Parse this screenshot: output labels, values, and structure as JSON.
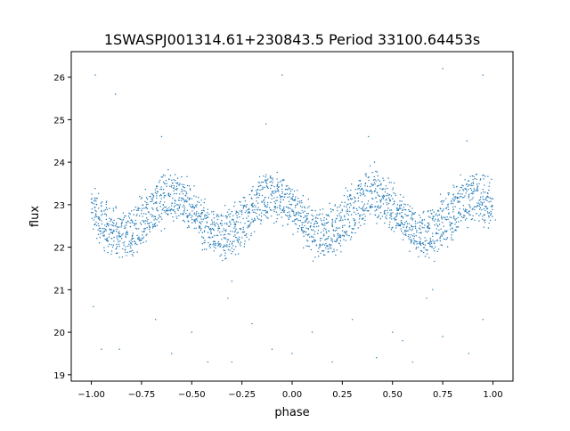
{
  "chart_data": {
    "type": "scatter",
    "title": "1SWASPJ001314.61+230843.5 Period 33100.64453s",
    "xlabel": "phase",
    "ylabel": "flux",
    "xlim": [
      -1.1,
      1.1
    ],
    "ylim": [
      18.85,
      26.6
    ],
    "xticks": [
      -1.0,
      -0.75,
      -0.5,
      -0.25,
      0.0,
      0.25,
      0.5,
      0.75,
      1.0
    ],
    "xtick_labels": [
      "−1.00",
      "−0.75",
      "−0.50",
      "−0.25",
      "0.00",
      "0.25",
      "0.50",
      "0.75",
      "1.00"
    ],
    "yticks": [
      19,
      20,
      21,
      22,
      23,
      24,
      25,
      26
    ],
    "ytick_labels": [
      "19",
      "20",
      "21",
      "22",
      "23",
      "24",
      "25",
      "26"
    ],
    "grid": false,
    "marker_color": "#1f77b4",
    "band_x_start": -1.0,
    "band_x_step": 0.025,
    "band_upper": [
      23.14,
      23.0,
      22.86,
      22.74,
      22.64,
      22.57,
      22.55,
      22.57,
      22.64,
      22.74,
      22.86,
      23.0,
      23.14,
      23.26,
      23.36,
      23.43,
      23.45,
      23.43,
      23.36,
      23.26,
      23.14,
      23.0,
      22.86,
      22.74,
      22.64,
      22.57,
      22.55,
      22.57,
      22.64,
      22.74,
      22.86,
      23.0,
      23.14,
      23.26,
      23.36,
      23.43,
      23.45,
      23.43,
      23.36,
      23.26,
      23.14,
      23.0,
      22.86,
      22.74,
      22.64,
      22.57,
      22.55,
      22.57,
      22.64,
      22.74,
      22.86,
      23.0,
      23.14,
      23.26,
      23.36,
      23.43,
      23.45,
      23.43,
      23.36,
      23.26,
      23.14,
      23.0,
      22.86,
      22.74,
      22.64,
      22.57,
      22.55,
      22.57,
      22.64,
      22.74,
      22.86,
      23.0,
      23.14,
      23.26,
      23.36,
      23.43,
      23.45,
      23.43,
      23.36,
      23.26,
      23.14
    ],
    "band_lower": [
      22.64,
      22.5,
      22.36,
      22.24,
      22.14,
      22.07,
      22.05,
      22.07,
      22.14,
      22.24,
      22.36,
      22.5,
      22.64,
      22.76,
      22.86,
      22.93,
      22.95,
      22.93,
      22.86,
      22.76,
      22.64,
      22.5,
      22.36,
      22.24,
      22.14,
      22.07,
      22.05,
      22.07,
      22.14,
      22.24,
      22.36,
      22.5,
      22.64,
      22.76,
      22.86,
      22.93,
      22.95,
      22.93,
      22.86,
      22.76,
      22.64,
      22.5,
      22.36,
      22.24,
      22.14,
      22.07,
      22.05,
      22.07,
      22.14,
      22.24,
      22.36,
      22.5,
      22.64,
      22.76,
      22.86,
      22.93,
      22.95,
      22.93,
      22.86,
      22.76,
      22.64,
      22.5,
      22.36,
      22.24,
      22.14,
      22.07,
      22.05,
      22.07,
      22.14,
      22.24,
      22.36,
      22.5,
      22.64,
      22.76,
      22.86,
      22.93,
      22.95,
      22.93,
      22.86,
      22.76,
      22.64
    ],
    "outliers": [
      [
        -0.98,
        26.05
      ],
      [
        -0.88,
        25.6
      ],
      [
        -0.05,
        26.05
      ],
      [
        0.95,
        26.05
      ],
      [
        0.75,
        26.2
      ],
      [
        -0.13,
        24.9
      ],
      [
        0.87,
        24.5
      ],
      [
        -0.65,
        24.6
      ],
      [
        0.38,
        24.6
      ],
      [
        0.41,
        24.0
      ],
      [
        -0.99,
        20.6
      ],
      [
        -0.95,
        19.6
      ],
      [
        -0.86,
        19.6
      ],
      [
        -0.68,
        20.3
      ],
      [
        -0.6,
        19.5
      ],
      [
        -0.5,
        20.0
      ],
      [
        -0.42,
        19.3
      ],
      [
        -0.32,
        20.8
      ],
      [
        -0.3,
        21.2
      ],
      [
        -0.2,
        20.2
      ],
      [
        -0.1,
        19.6
      ],
      [
        0.0,
        19.5
      ],
      [
        0.1,
        20.0
      ],
      [
        0.2,
        19.3
      ],
      [
        0.3,
        20.3
      ],
      [
        0.42,
        19.4
      ],
      [
        0.5,
        20.0
      ],
      [
        0.6,
        19.3
      ],
      [
        0.67,
        20.8
      ],
      [
        0.7,
        21.0
      ],
      [
        0.75,
        19.9
      ],
      [
        0.88,
        19.5
      ],
      [
        0.95,
        20.3
      ],
      [
        -0.3,
        19.3
      ],
      [
        0.55,
        19.8
      ]
    ]
  }
}
